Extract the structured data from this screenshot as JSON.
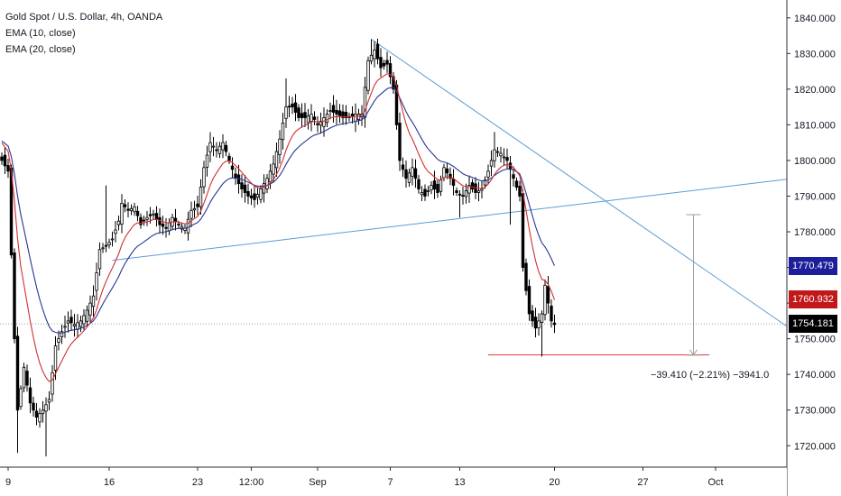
{
  "legend": {
    "title": "Gold Spot / U.S. Dollar, 4h, OANDA",
    "ema10": "EMA (10, close)",
    "ema20": "EMA (20, close)"
  },
  "measure_label": "−39.410 (−2.21%) −3941.0",
  "price_badges": {
    "ema20": {
      "value": 1770.479,
      "label": "1770.479",
      "color": "#1e1e9c"
    },
    "ema10": {
      "value": 1760.932,
      "label": "1760.932",
      "color": "#c2181a"
    },
    "last": {
      "value": 1754.181,
      "label": "1754.181",
      "color": "#000000"
    }
  },
  "colors": {
    "up": "#000000",
    "down": "#000000",
    "ema10": "#d32f2f",
    "ema20": "#283593",
    "trendline": "#5b9bd5",
    "support": "#e53935",
    "measure": "#9e9e9e",
    "grid": "#ffffff",
    "axis_text": "#131722"
  },
  "chart_data": {
    "type": "candlestick",
    "title": "Gold Spot / U.S. Dollar, 4h, OANDA",
    "ylim": [
      1714,
      1845
    ],
    "y_ticks": [
      1720,
      1730,
      1740,
      1750,
      1760,
      1770,
      1780,
      1790,
      1800,
      1810,
      1820,
      1830,
      1840
    ],
    "y_tick_labels": [
      "1720.000",
      "1730.000",
      "1740.000",
      "1750.000",
      "1760.000",
      "1770.000",
      "1780.000",
      "1790.000",
      "1800.000",
      "1810.000",
      "1820.000",
      "1830.000",
      "1840.000"
    ],
    "x_ticks": [
      {
        "label": "9",
        "bar": 2
      },
      {
        "label": "16",
        "bar": 34
      },
      {
        "label": "23",
        "bar": 62
      },
      {
        "label": "12:00",
        "bar": 79
      },
      {
        "label": "Sep",
        "bar": 100
      },
      {
        "label": "7",
        "bar": 123
      },
      {
        "label": "13",
        "bar": 145
      },
      {
        "label": "20",
        "bar": 175
      },
      {
        "label": "27",
        "bar": 203
      },
      {
        "label": "Oct",
        "bar": 226
      }
    ],
    "anchors": [
      [
        0,
        1800
      ],
      [
        2,
        1797
      ],
      [
        4,
        1750
      ],
      [
        5,
        1730
      ],
      [
        7,
        1742
      ],
      [
        9,
        1732
      ],
      [
        11,
        1728
      ],
      [
        13,
        1730
      ],
      [
        15,
        1733
      ],
      [
        17,
        1748
      ],
      [
        19,
        1752
      ],
      [
        21,
        1755
      ],
      [
        23,
        1754
      ],
      [
        25,
        1755
      ],
      [
        27,
        1758
      ],
      [
        29,
        1762
      ],
      [
        31,
        1775
      ],
      [
        33,
        1776
      ],
      [
        35,
        1778
      ],
      [
        37,
        1783
      ],
      [
        38,
        1788
      ],
      [
        40,
        1786
      ],
      [
        42,
        1787
      ],
      [
        44,
        1782
      ],
      [
        46,
        1784
      ],
      [
        48,
        1785
      ],
      [
        50,
        1782
      ],
      [
        52,
        1781
      ],
      [
        54,
        1784
      ],
      [
        56,
        1782
      ],
      [
        58,
        1781
      ],
      [
        60,
        1786
      ],
      [
        62,
        1787
      ],
      [
        64,
        1798
      ],
      [
        66,
        1805
      ],
      [
        68,
        1803
      ],
      [
        70,
        1805
      ],
      [
        72,
        1800
      ],
      [
        74,
        1795
      ],
      [
        76,
        1792
      ],
      [
        78,
        1790
      ],
      [
        80,
        1789
      ],
      [
        82,
        1792
      ],
      [
        84,
        1795
      ],
      [
        86,
        1799
      ],
      [
        88,
        1806
      ],
      [
        90,
        1815
      ],
      [
        92,
        1815
      ],
      [
        94,
        1812
      ],
      [
        96,
        1812
      ],
      [
        98,
        1813
      ],
      [
        100,
        1810
      ],
      [
        102,
        1812
      ],
      [
        104,
        1814
      ],
      [
        106,
        1813
      ],
      [
        108,
        1812
      ],
      [
        110,
        1812
      ],
      [
        112,
        1813
      ],
      [
        114,
        1813
      ],
      [
        116,
        1828
      ],
      [
        118,
        1831
      ],
      [
        120,
        1826
      ],
      [
        122,
        1827
      ],
      [
        124,
        1820
      ],
      [
        126,
        1800
      ],
      [
        128,
        1795
      ],
      [
        130,
        1798
      ],
      [
        132,
        1792
      ],
      [
        134,
        1790
      ],
      [
        136,
        1793
      ],
      [
        138,
        1791
      ],
      [
        140,
        1798
      ],
      [
        142,
        1795
      ],
      [
        144,
        1791
      ],
      [
        146,
        1790
      ],
      [
        148,
        1793
      ],
      [
        150,
        1791
      ],
      [
        152,
        1792
      ],
      [
        154,
        1797
      ],
      [
        156,
        1803
      ],
      [
        158,
        1802
      ],
      [
        160,
        1800
      ],
      [
        162,
        1795
      ],
      [
        164,
        1790
      ],
      [
        165,
        1770
      ],
      [
        167,
        1757
      ],
      [
        169,
        1753
      ],
      [
        171,
        1757
      ],
      [
        172,
        1765
      ],
      [
        174,
        1755
      ],
      [
        175,
        1754
      ]
    ],
    "highs": [
      [
        117,
        1834
      ],
      [
        156,
        1808
      ],
      [
        33,
        1793
      ],
      [
        90,
        1823
      ]
    ],
    "lows": [
      [
        5,
        1718
      ],
      [
        14,
        1717
      ],
      [
        171,
        1745
      ],
      [
        161,
        1782
      ],
      [
        145,
        1784
      ]
    ],
    "last_price": 1754.181,
    "trendlines": [
      {
        "name": "descending-resistance",
        "from": {
          "bar": 117,
          "price": 1834
        },
        "to": {
          "bar": 251,
          "price": 1752
        }
      },
      {
        "name": "ascending-support",
        "from": {
          "bar": 35,
          "price": 1772
        },
        "to": {
          "bar": 251,
          "price": 1795
        }
      }
    ],
    "support_line": {
      "from_bar": 154,
      "to_bar": 224,
      "price": 1745.5
    },
    "measure": {
      "bar": 219,
      "from_price": 1784.8,
      "to_price": 1745.4,
      "change": -39.41,
      "percent": -2.21,
      "ticks": -3941.0
    }
  }
}
